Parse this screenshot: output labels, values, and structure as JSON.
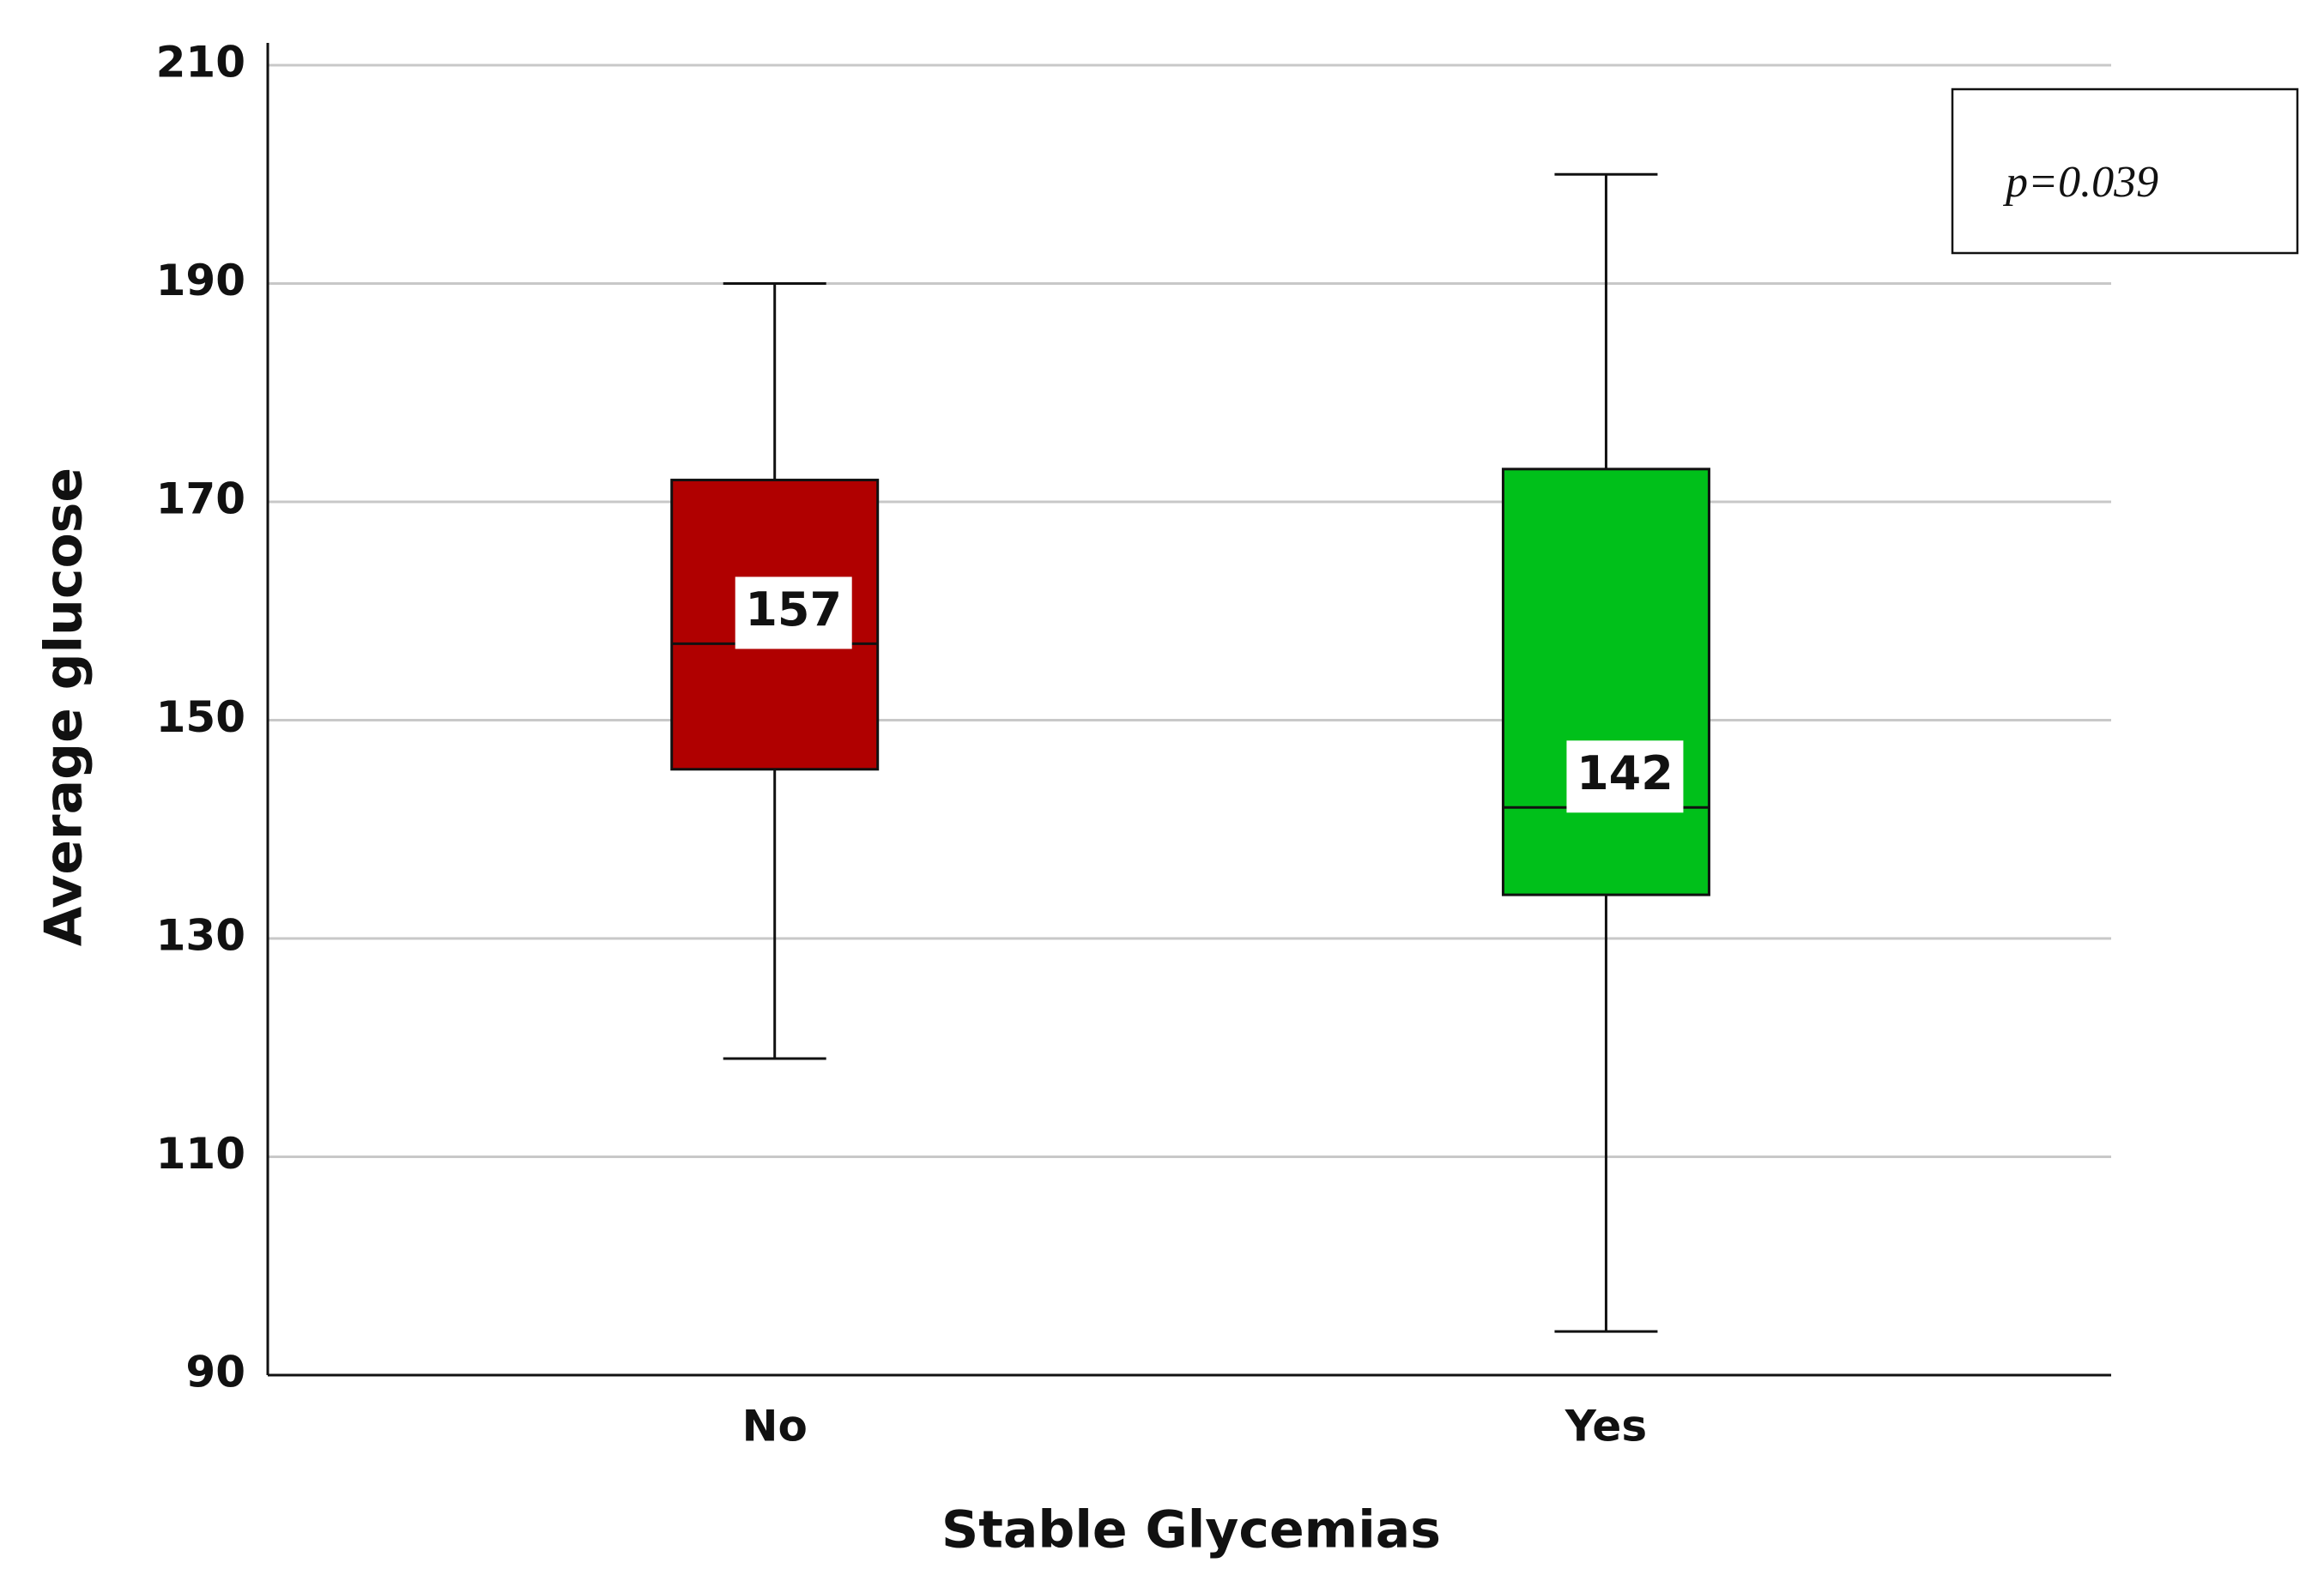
{
  "chart_data": {
    "type": "box",
    "x_label": "Stable Glycemias",
    "y_label": "Average glucose",
    "annotation": "p=0.039",
    "categories": [
      "No",
      "Yes"
    ],
    "boxes": [
      {
        "min": 119,
        "q1": 145.5,
        "median": 157,
        "q3": 172,
        "max": 190,
        "color": "#b00000"
      },
      {
        "min": 94,
        "q1": 134,
        "median": 142,
        "q3": 173,
        "max": 200,
        "color": "#00c01a"
      }
    ],
    "ylim": [
      90,
      210
    ],
    "yticks": [
      90,
      110,
      130,
      150,
      170,
      190,
      210
    ],
    "grid": true
  }
}
